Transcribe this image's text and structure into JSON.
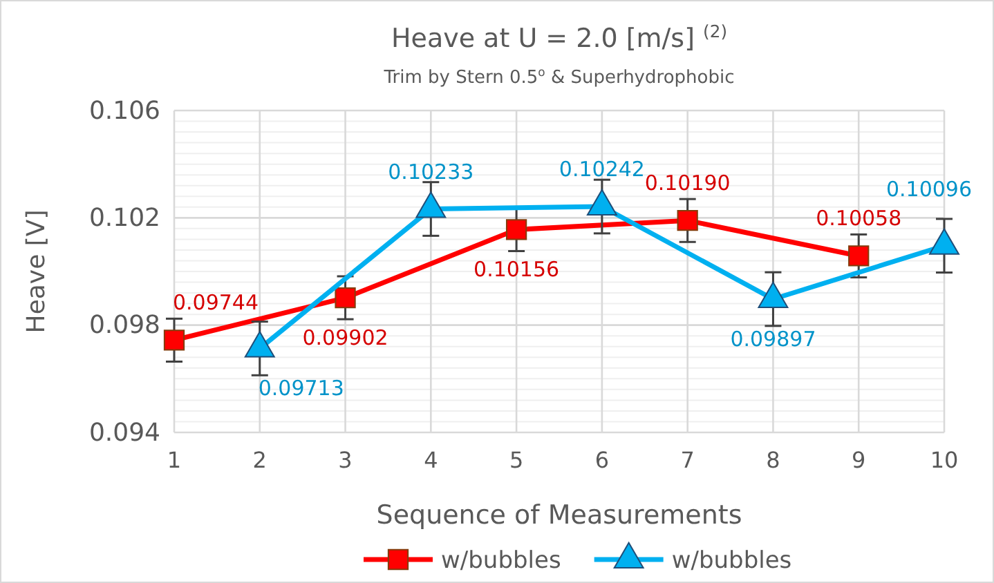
{
  "chart_data": {
    "type": "line",
    "title": "Heave at U = 2.0 [m/s] $^{(2)}$",
    "subtitle": "Trim by Stern 0.5$^{o}$ & Superhydrophobic",
    "xlabel": "Sequence of Measurements",
    "ylabel": "Heave [V]",
    "xlim": [
      1,
      10
    ],
    "xticks": [
      1,
      2,
      3,
      4,
      5,
      6,
      7,
      8,
      9,
      10
    ],
    "ylim": [
      0.094,
      0.106
    ],
    "yticks": [
      0.094,
      0.098,
      0.102,
      0.106
    ],
    "grid": true,
    "legend": "bottom",
    "series": [
      {
        "name": "w/bubbles",
        "color": "#ff0000",
        "marker": "square",
        "x": [
          1,
          3,
          5,
          7,
          9
        ],
        "values": [
          0.09744,
          0.09902,
          0.10156,
          0.1019,
          0.10058
        ],
        "value_labels": [
          "0.09744",
          "0.09902",
          "0.10156",
          "0.10190",
          "0.10058"
        ],
        "errors": [
          0.0008,
          0.0008,
          0.0008,
          0.0008,
          0.0008
        ]
      },
      {
        "name": "w/bubbles",
        "color": "#00b0f0",
        "marker": "triangle",
        "x": [
          2,
          4,
          6,
          8,
          10
        ],
        "values": [
          0.09713,
          0.10233,
          0.10242,
          0.09897,
          0.10096
        ],
        "value_labels": [
          "0.09713",
          "0.10233",
          "0.10242",
          "0.09897",
          "0.10096"
        ],
        "errors": [
          0.001,
          0.001,
          0.001,
          0.001,
          0.001
        ]
      }
    ]
  }
}
